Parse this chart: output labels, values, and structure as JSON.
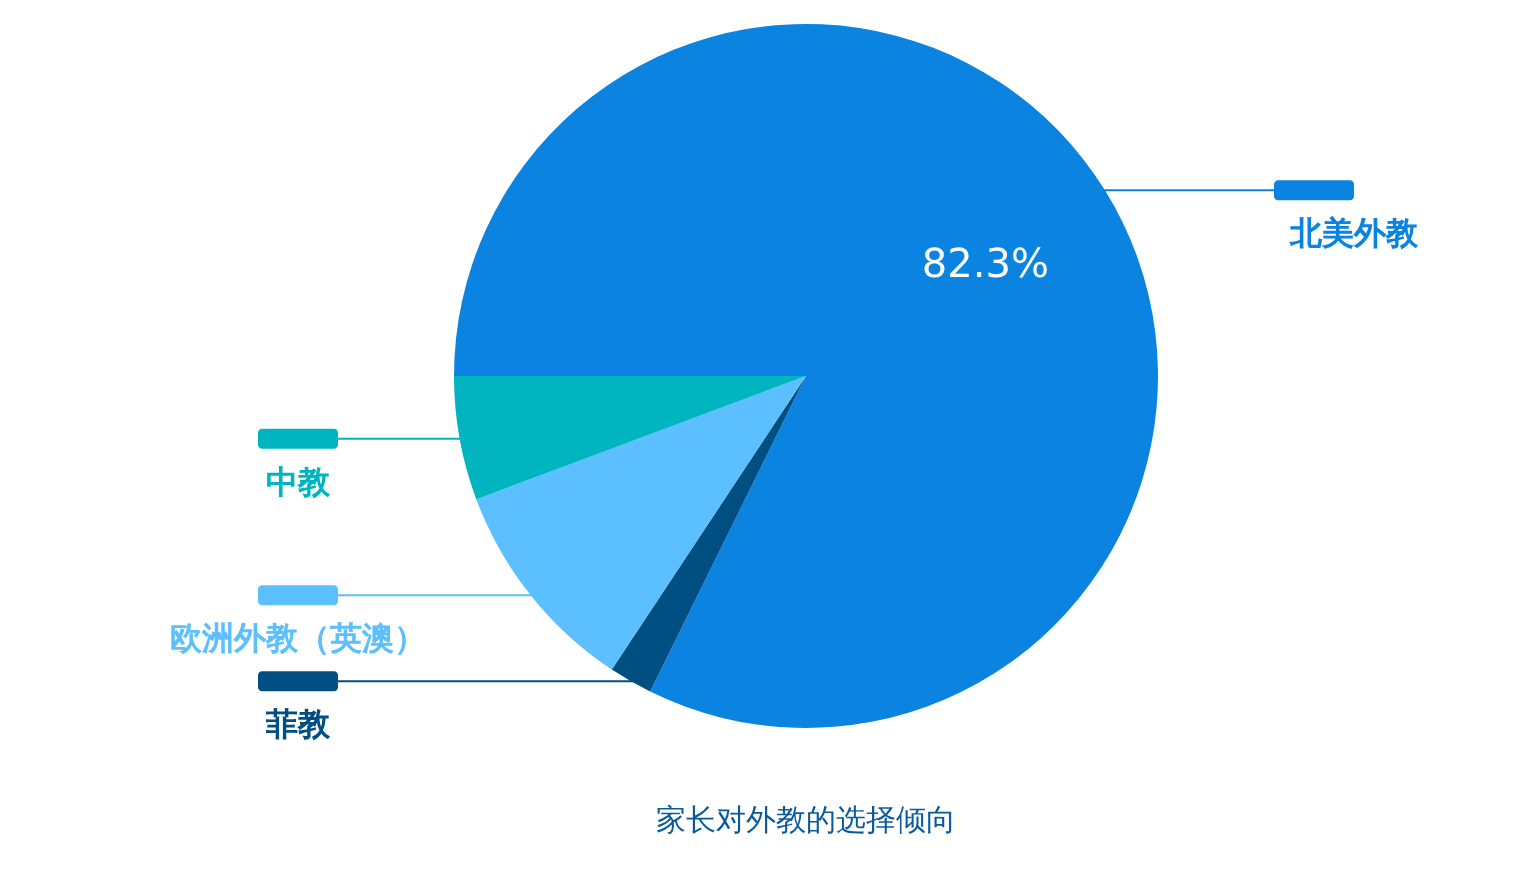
{
  "chart_data": {
    "type": "pie",
    "title": "家长对外教的选择倾向",
    "categories": [
      "北美外教",
      "菲教",
      "欧洲外教（英澳）",
      "中教"
    ],
    "values": [
      82.3,
      2.0,
      10.0,
      5.7
    ],
    "colors": [
      "#0a84e0",
      "#004f82",
      "#5cbfff",
      "#00b4c0"
    ],
    "value_labels": [
      "82.3%",
      null,
      null,
      null
    ],
    "legend": "left"
  }
}
